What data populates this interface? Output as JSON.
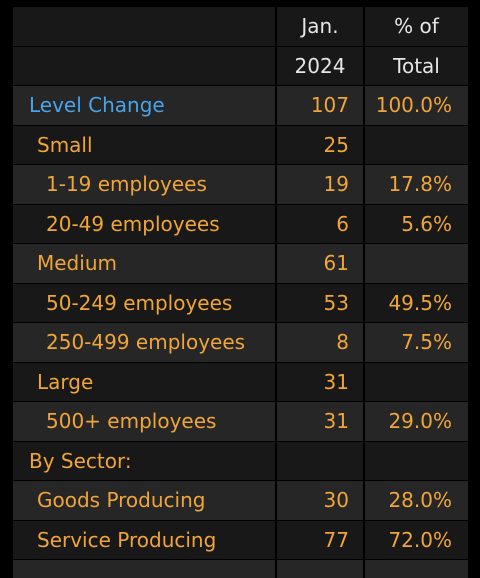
{
  "header": {
    "col2_line1": "Jan.",
    "col2_line2": "2024",
    "col3_line1": "% of",
    "col3_line2": "Total"
  },
  "rows": [
    {
      "label": "Level Change",
      "value": "107",
      "pct": "100.0%",
      "style": "blue"
    },
    {
      "label": "Small",
      "value": "25",
      "pct": ""
    },
    {
      "label": "1-19 employees",
      "value": "19",
      "pct": "17.8%"
    },
    {
      "label": "20-49 employees",
      "value": "6",
      "pct": "5.6%"
    },
    {
      "label": "Medium",
      "value": "61",
      "pct": ""
    },
    {
      "label": "50-249 employees",
      "value": "53",
      "pct": "49.5%"
    },
    {
      "label": "250-499 employees",
      "value": "8",
      "pct": "7.5%"
    },
    {
      "label": "Large",
      "value": "31",
      "pct": ""
    },
    {
      "label": "500+ employees",
      "value": "31",
      "pct": "29.0%"
    },
    {
      "label": "By Sector:",
      "value": "",
      "pct": ""
    },
    {
      "label": "Goods Producing",
      "value": "30",
      "pct": "28.0%"
    },
    {
      "label": "Service Producing",
      "value": "77",
      "pct": "72.0%"
    }
  ],
  "colors": {
    "text_orange": "#f0a53a",
    "text_blue": "#4aa3e8",
    "row_dark": "#181818",
    "row_light": "#262626"
  }
}
